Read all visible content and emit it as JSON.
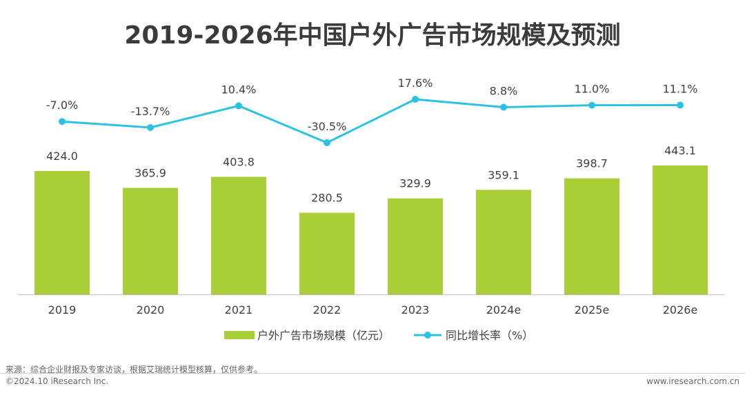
{
  "chart_data": {
    "type": "bar",
    "title": "2019-2026年中国户外广告市场规模及预测",
    "categories": [
      "2019",
      "2020",
      "2021",
      "2022",
      "2023",
      "2024e",
      "2025e",
      "2026e"
    ],
    "series": [
      {
        "name": "户外广告市场规模（亿元）",
        "kind": "bar",
        "values": [
          424.0,
          365.9,
          403.8,
          280.5,
          329.9,
          359.1,
          398.7,
          443.1
        ],
        "labels": [
          "424.0",
          "365.9",
          "403.8",
          "280.5",
          "329.9",
          "359.1",
          "398.7",
          "443.1"
        ],
        "color": "#a9cf38"
      },
      {
        "name": "同比增长率（%）",
        "kind": "line",
        "values": [
          -7.0,
          -13.7,
          10.4,
          -30.5,
          17.6,
          8.8,
          11.0,
          11.1
        ],
        "labels": [
          "-7.0%",
          "-13.7%",
          "10.4%",
          "-30.5%",
          "17.6%",
          "8.8%",
          "11.0%",
          "11.1%"
        ],
        "color": "#29c2e6"
      }
    ],
    "xlabel": "",
    "ylabel": "",
    "ylim": [
      0,
      450
    ],
    "y2lim": [
      -35,
      20
    ],
    "grid": false,
    "legend_position": "bottom"
  },
  "footer": {
    "source": "来源：综合企业财报及专家访谈，根据艾瑞统计模型核算，仅供参考。",
    "copyright": "©2024.10 iResearch Inc.",
    "website": "www.iresearch.com.cn"
  }
}
